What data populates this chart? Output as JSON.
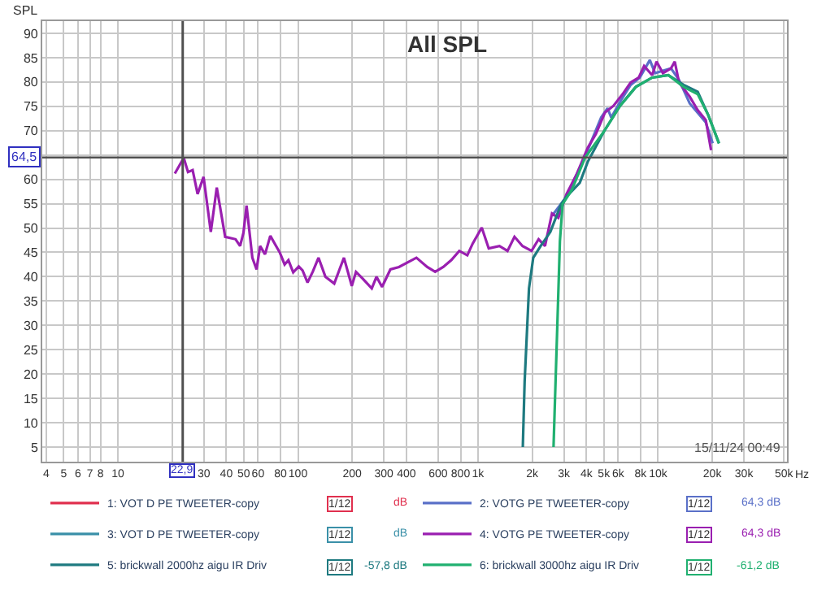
{
  "chart_data": {
    "type": "line",
    "title": "All SPL",
    "ylabel": "SPL",
    "log": "x",
    "grid": true,
    "legend": "bottom",
    "marker": "none",
    "line_style": "solid",
    "xlim": [
      3.8,
      52000
    ],
    "ylim": [
      2,
      92.5
    ],
    "xticks": [
      4,
      5,
      6,
      7,
      8,
      10,
      {
        "value": 20,
        "label": null
      },
      30,
      40,
      50,
      60,
      80,
      100,
      200,
      300,
      400,
      600,
      800,
      {
        "value": 1000,
        "label": "1k"
      },
      {
        "value": 2000,
        "label": "2k"
      },
      {
        "value": 3000,
        "label": "3k"
      },
      {
        "value": 4000,
        "label": "4k"
      },
      {
        "value": 5000,
        "label": "5k"
      },
      {
        "value": 6000,
        "label": "6k"
      },
      {
        "value": 8000,
        "label": "8k"
      },
      {
        "value": 10000,
        "label": "10k"
      },
      {
        "value": 20000,
        "label": "20k"
      },
      {
        "value": 30000,
        "label": "30k"
      },
      {
        "value": 50000,
        "label": "50k"
      }
    ],
    "xlabel": "Hz",
    "yticks": [
      5,
      10,
      15,
      20,
      25,
      30,
      35,
      40,
      45,
      50,
      55,
      60,
      {
        "value": 65,
        "label": null
      },
      70,
      75,
      80,
      85,
      90
    ],
    "ref_lines": [
      {
        "axis": "x",
        "value": 22.9,
        "label": "22,9",
        "color": "#505050"
      },
      {
        "axis": "y",
        "value": 64.5,
        "label": "64,5",
        "color": "#505050"
      }
    ],
    "annotations": [
      "15/11/24 00:49",
      "1/12",
      "dB",
      "1/12",
      "64,3 dB",
      "1/12",
      "dB",
      "1/12",
      "64,3 dB",
      "1/12",
      "-57,8 dB",
      "1/12",
      "-61,2 dB"
    ],
    "series": [
      {
        "name": "1: VOT D PE TWEETER-copy",
        "color": "#e0304e",
        "x": [
          null
        ],
        "values": [
          null
        ]
      },
      {
        "name": "2: VOTG PE TWEETER-copy",
        "color": "#5a70c8",
        "x": [
          2575,
          3095,
          4068,
          4829,
          5240,
          5496,
          6190,
          7045,
          7915,
          9000,
          9630,
          10640,
          11800,
          13080,
          14990,
          16600,
          18400,
          20100
        ],
        "values": [
          52.5,
          56.4,
          66.0,
          72.7,
          74.6,
          72.7,
          76.1,
          79.4,
          80.9,
          84.5,
          81.8,
          82.3,
          82.8,
          80.4,
          75.6,
          73.7,
          71.7,
          67.4
        ]
      },
      {
        "name": "3: VOT D PE TWEETER-copy",
        "color": "#3a90a8",
        "x": [
          null
        ],
        "values": [
          null
        ]
      },
      {
        "name": "4: VOTG PE TWEETER-copy",
        "color": "#9a1fb0",
        "x": [
          20.7,
          23.2,
          24.5,
          26.0,
          27.7,
          29.9,
          32.8,
          35.4,
          39.4,
          45.0,
          47.7,
          49.8,
          51.8,
          55.8,
          58.9,
          61.6,
          65.6,
          70.2,
          79.4,
          84.3,
          88.5,
          94.1,
          101,
          106,
          113,
          121,
          130,
          142,
          159,
          180,
          199,
          210,
          229,
          257,
          273,
          293,
          326,
          364,
          455,
          522,
          578,
          641,
          710,
          787,
          872,
          934,
          1049,
          1147,
          1315,
          1458,
          1594,
          1767,
          1984,
          2170,
          2355,
          2575,
          2794,
          3095,
          3549,
          4068,
          4510,
          5066,
          5653,
          6355,
          7045,
          7811,
          8364,
          9275,
          9808,
          10640,
          11800,
          12380,
          13080,
          14990,
          16600,
          18400,
          19700
        ],
        "values": [
          61.2,
          64.4,
          61.5,
          61.9,
          57.0,
          60.5,
          49.2,
          58.3,
          48.2,
          47.7,
          46.3,
          49.0,
          54.6,
          43.9,
          41.5,
          46.3,
          44.6,
          48.4,
          44.9,
          42.5,
          43.4,
          40.9,
          42.1,
          41.3,
          38.8,
          41.1,
          43.9,
          40.0,
          38.6,
          43.9,
          38.1,
          41.0,
          39.6,
          37.6,
          40.0,
          37.9,
          41.5,
          42.0,
          43.9,
          42.0,
          41.0,
          42.0,
          43.4,
          45.3,
          44.4,
          46.8,
          50.1,
          45.8,
          46.3,
          45.3,
          48.2,
          46.3,
          45.3,
          47.7,
          46.3,
          53.0,
          52.1,
          56.9,
          61.2,
          66.5,
          69.3,
          73.7,
          75.1,
          77.5,
          79.9,
          80.9,
          83.3,
          81.4,
          84.2,
          81.8,
          82.8,
          84.2,
          79.9,
          77.0,
          74.2,
          72.2,
          66.0
        ]
      },
      {
        "name": "5: brickwall 2000hz aigu IR Driv",
        "color": "#1e7a80",
        "x": [
          1773,
          1815,
          1919,
          2026,
          2228,
          2522,
          2893,
          3095,
          3674,
          4068,
          4998,
          6150,
          7530,
          9275,
          11400,
          13860,
          16600,
          19000,
          21800
        ],
        "values": [
          5,
          18.4,
          37.6,
          43.9,
          46.3,
          49.2,
          54.9,
          56.4,
          59.3,
          63.6,
          69.8,
          75.1,
          79.0,
          80.9,
          81.4,
          79.4,
          78.0,
          73.2,
          67.4
        ]
      },
      {
        "name": "6: brickwall 3000hz aigu IR Driv",
        "color": "#20b070",
        "x": [
          2626,
          2746,
          2850,
          2950,
          3316,
          3937,
          4998,
          6150,
          7530,
          9275,
          11400,
          13860,
          16600,
          19000,
          21800
        ],
        "values": [
          5,
          28.0,
          47.3,
          54.9,
          57.8,
          64.5,
          69.8,
          75.1,
          79.0,
          80.9,
          81.4,
          79.0,
          77.5,
          73.2,
          67.4
        ]
      }
    ]
  }
}
